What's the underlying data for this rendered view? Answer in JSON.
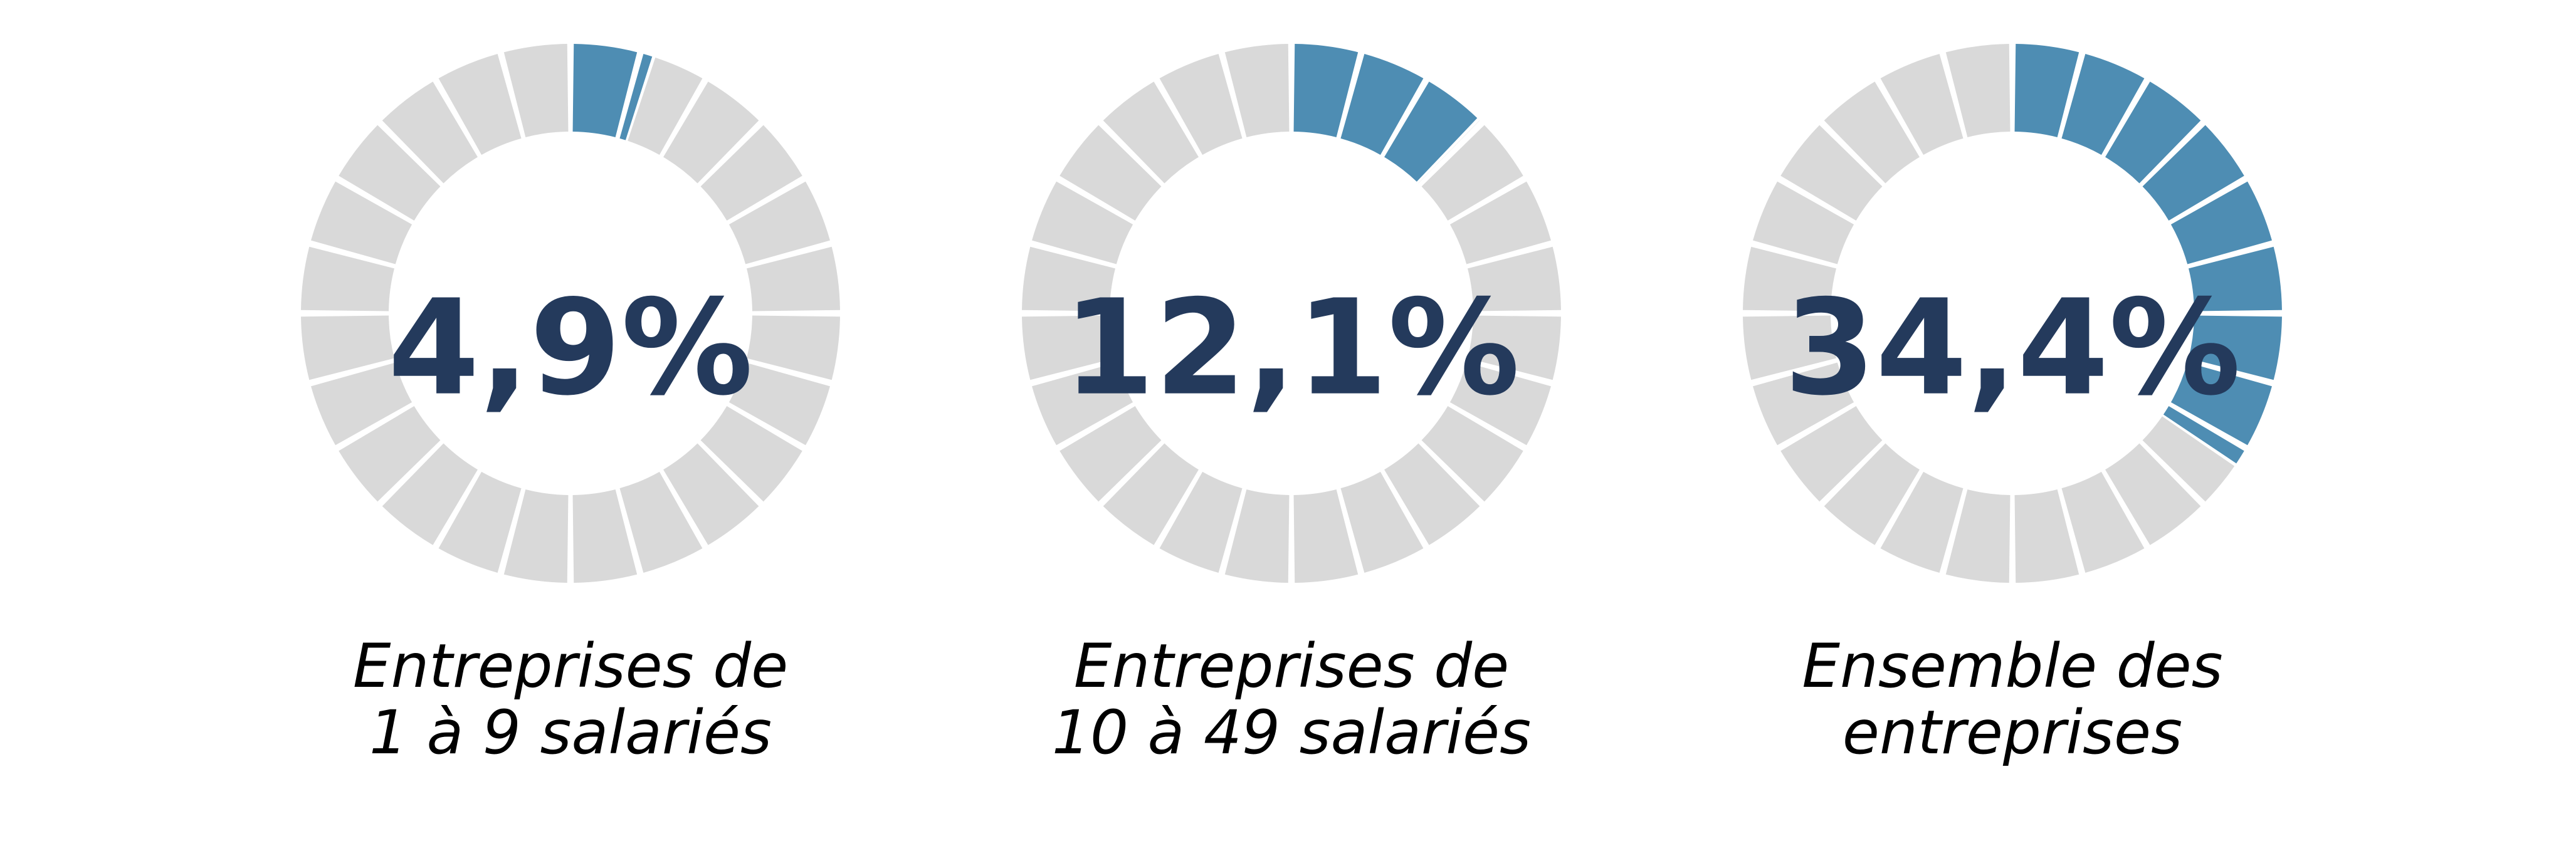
{
  "chart_data": [
    {
      "type": "gauge",
      "value": 4.9,
      "value_label": "4,9%",
      "max": 100,
      "segments": 24,
      "label_lines": [
        "Entreprises de",
        "1 à 9 salariés"
      ]
    },
    {
      "type": "gauge",
      "value": 12.1,
      "value_label": "12,1%",
      "max": 100,
      "segments": 24,
      "label_lines": [
        "Entreprises de",
        "10 à 49 salariés"
      ]
    },
    {
      "type": "gauge",
      "value": 34.4,
      "value_label": "34,4%",
      "max": 100,
      "segments": 24,
      "label_lines": [
        "Ensemble des",
        "entreprises"
      ]
    }
  ],
  "colors": {
    "filled": "#4e8db3",
    "empty": "#d9d9d9",
    "value_text": "#243a5c",
    "caption_text": "#000000"
  }
}
